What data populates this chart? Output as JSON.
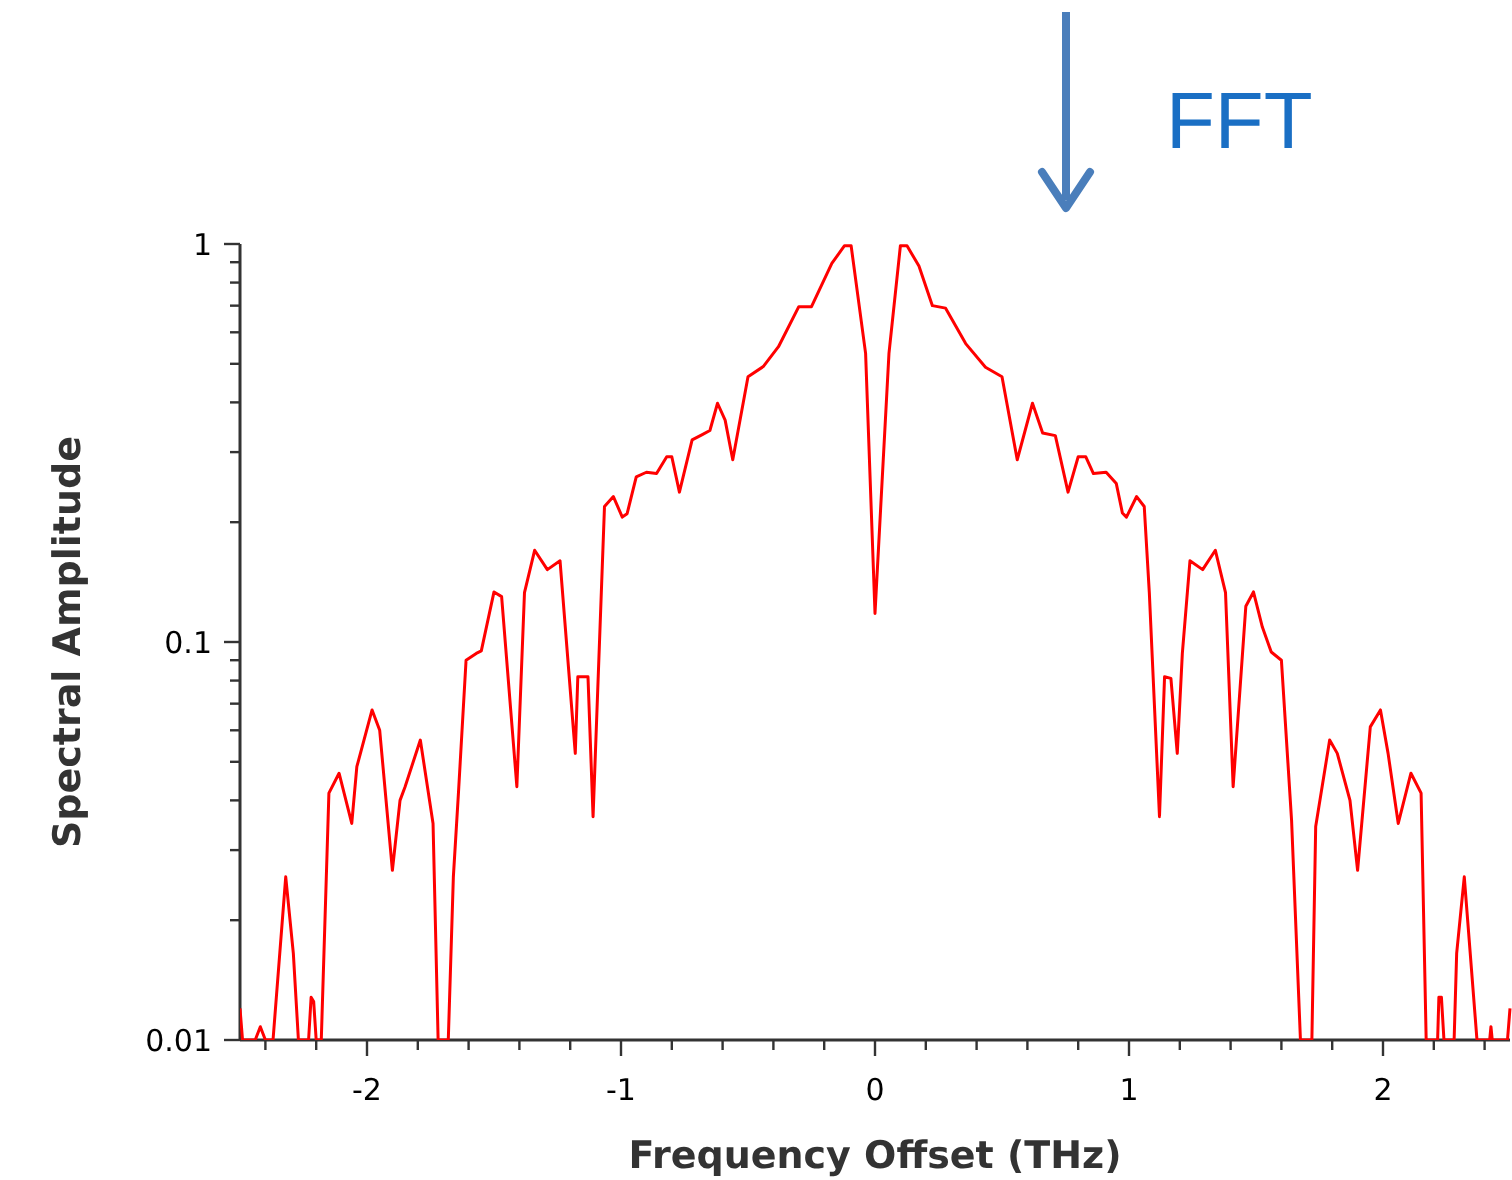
{
  "chart_data": {
    "type": "line",
    "xlabel": "Frequency Offset (THz)",
    "ylabel": "Spectral Amplitude",
    "log": "y",
    "grid": false,
    "marker": "none",
    "line_style": "solid",
    "xlim": [
      -2.5,
      2.5
    ],
    "ylim": [
      0.01,
      1
    ],
    "xticks": [
      {
        "value": -2.4,
        "label": null
      },
      {
        "value": -2.2,
        "label": null
      },
      {
        "value": -2,
        "label": "-2"
      },
      {
        "value": -1.8,
        "label": null
      },
      {
        "value": -1.6,
        "label": null
      },
      {
        "value": -1.4,
        "label": null
      },
      {
        "value": -1.2,
        "label": null
      },
      {
        "value": -1,
        "label": "-1"
      },
      {
        "value": -0.8,
        "label": null
      },
      {
        "value": -0.6,
        "label": null
      },
      {
        "value": -0.4,
        "label": null
      },
      {
        "value": -0.2,
        "label": null
      },
      0,
      {
        "value": 0.2,
        "label": null
      },
      {
        "value": 0.4,
        "label": null
      },
      {
        "value": 0.6,
        "label": null
      },
      {
        "value": 0.8,
        "label": null
      },
      1,
      {
        "value": 1.2,
        "label": null
      },
      {
        "value": 1.4,
        "label": null
      },
      {
        "value": 1.6,
        "label": null
      },
      {
        "value": 1.8,
        "label": null
      },
      2,
      {
        "value": 2.2,
        "label": null
      },
      {
        "value": 2.4,
        "label": null
      }
    ],
    "yticks": [
      0.01,
      {
        "value": 0.02,
        "label": null
      },
      {
        "value": 0.03,
        "label": null
      },
      {
        "value": 0.04,
        "label": null
      },
      {
        "value": 0.05,
        "label": null
      },
      {
        "value": 0.06,
        "label": null
      },
      {
        "value": 0.07,
        "label": null
      },
      {
        "value": 0.08,
        "label": null
      },
      {
        "value": 0.09,
        "label": null
      },
      0.1,
      {
        "value": 0.2,
        "label": null
      },
      {
        "value": 0.3,
        "label": null
      },
      {
        "value": 0.4,
        "label": null
      },
      {
        "value": 0.5,
        "label": null
      },
      {
        "value": 0.6,
        "label": null
      },
      {
        "value": 0.7,
        "label": null
      },
      {
        "value": 0.8,
        "label": null
      },
      {
        "value": 0.9,
        "label": null
      },
      1
    ],
    "annotations": [
      "FFT"
    ],
    "series": [
      {
        "color": "#ff0000",
        "x": [
          -2.5,
          -2.49,
          -2.44,
          -2.42,
          -2.4,
          -2.37,
          -2.32,
          -2.29,
          -2.27,
          -2.23,
          -2.22,
          -2.21,
          -2.2,
          -2.18,
          -2.15,
          -2.11,
          -2.06,
          -2.04,
          -1.98,
          -1.95,
          -1.9,
          -1.87,
          -1.85,
          -1.79,
          -1.74,
          -1.72,
          -1.68,
          -1.66,
          -1.64,
          -1.61,
          -1.57,
          -1.55,
          -1.5,
          -1.47,
          -1.41,
          -1.38,
          -1.34,
          -1.29,
          -1.24,
          -1.18,
          -1.17,
          -1.13,
          -1.11,
          -1.065,
          -1.03,
          -0.995,
          -0.976,
          -0.94,
          -0.9,
          -0.86,
          -0.82,
          -0.8,
          -0.77,
          -0.72,
          -0.68,
          -0.65,
          -0.62,
          -0.59,
          -0.56,
          -0.5,
          -0.44,
          -0.38,
          -0.3,
          -0.25,
          -0.17,
          -0.12,
          -0.094,
          -0.037,
          0,
          0.055,
          0.1,
          0.126,
          0.173,
          0.226,
          0.278,
          0.357,
          0.435,
          0.5,
          0.56,
          0.62,
          0.66,
          0.71,
          0.76,
          0.8,
          0.83,
          0.86,
          0.91,
          0.95,
          0.974,
          0.99,
          1.03,
          1.06,
          1.08,
          1.12,
          1.14,
          1.165,
          1.19,
          1.21,
          1.24,
          1.29,
          1.34,
          1.38,
          1.41,
          1.46,
          1.49,
          1.525,
          1.56,
          1.6,
          1.64,
          1.675,
          1.72,
          1.735,
          1.79,
          1.82,
          1.87,
          1.9,
          1.95,
          1.99,
          2.02,
          2.06,
          2.11,
          2.15,
          2.17,
          2.215,
          2.22,
          2.23,
          2.24,
          2.28,
          2.29,
          2.32,
          2.37,
          2.42,
          2.425,
          2.43,
          2.49,
          2.5
        ],
        "values": [
          0.012,
          0.01,
          0.01,
          0.0108,
          0.01,
          0.01,
          0.0257,
          0.0165,
          0.01,
          0.01,
          0.0128,
          0.0125,
          0.01,
          0.01,
          0.0417,
          0.0468,
          0.035,
          0.0486,
          0.0675,
          0.06,
          0.0267,
          0.04,
          0.0433,
          0.0567,
          0.035,
          0.01,
          0.01,
          0.0257,
          0.0417,
          0.09,
          0.0936,
          0.095,
          0.1336,
          0.13,
          0.0433,
          0.133,
          0.17,
          0.152,
          0.16,
          0.0525,
          0.0818,
          0.0818,
          0.0364,
          0.219,
          0.232,
          0.206,
          0.21,
          0.26,
          0.267,
          0.265,
          0.292,
          0.292,
          0.238,
          0.322,
          0.332,
          0.34,
          0.398,
          0.361,
          0.287,
          0.464,
          0.492,
          0.552,
          0.696,
          0.696,
          0.894,
          0.99,
          0.99,
          0.531,
          0.118,
          0.531,
          0.99,
          0.99,
          0.88,
          0.7,
          0.69,
          0.562,
          0.49,
          0.464,
          0.287,
          0.398,
          0.335,
          0.33,
          0.238,
          0.292,
          0.292,
          0.265,
          0.267,
          0.25,
          0.211,
          0.206,
          0.232,
          0.219,
          0.133,
          0.0364,
          0.0818,
          0.081,
          0.0525,
          0.0936,
          0.16,
          0.152,
          0.17,
          0.133,
          0.0433,
          0.123,
          0.1336,
          0.109,
          0.0944,
          0.09,
          0.0357,
          0.01,
          0.01,
          0.0344,
          0.0567,
          0.0525,
          0.04,
          0.0267,
          0.0612,
          0.0675,
          0.0525,
          0.035,
          0.0468,
          0.0417,
          0.01,
          0.01,
          0.0128,
          0.0128,
          0.01,
          0.01,
          0.0165,
          0.0257,
          0.01,
          0.01,
          0.0108,
          0.01,
          0.01,
          0.012
        ]
      }
    ]
  }
}
